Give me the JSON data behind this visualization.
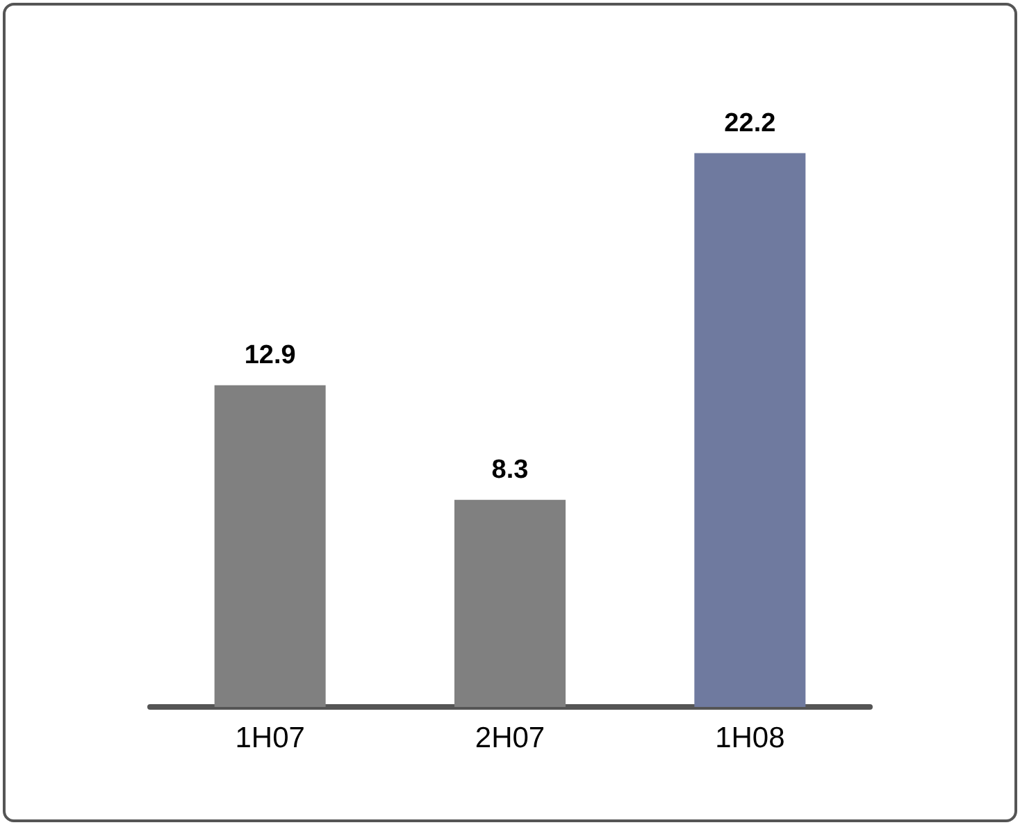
{
  "chart_data": {
    "type": "bar",
    "categories": [
      "1H07",
      "2H07",
      "1H08"
    ],
    "values": [
      12.9,
      8.3,
      22.2
    ],
    "colors": [
      "#808080",
      "#808080",
      "#6f7a9f"
    ],
    "data_labels": true
  }
}
